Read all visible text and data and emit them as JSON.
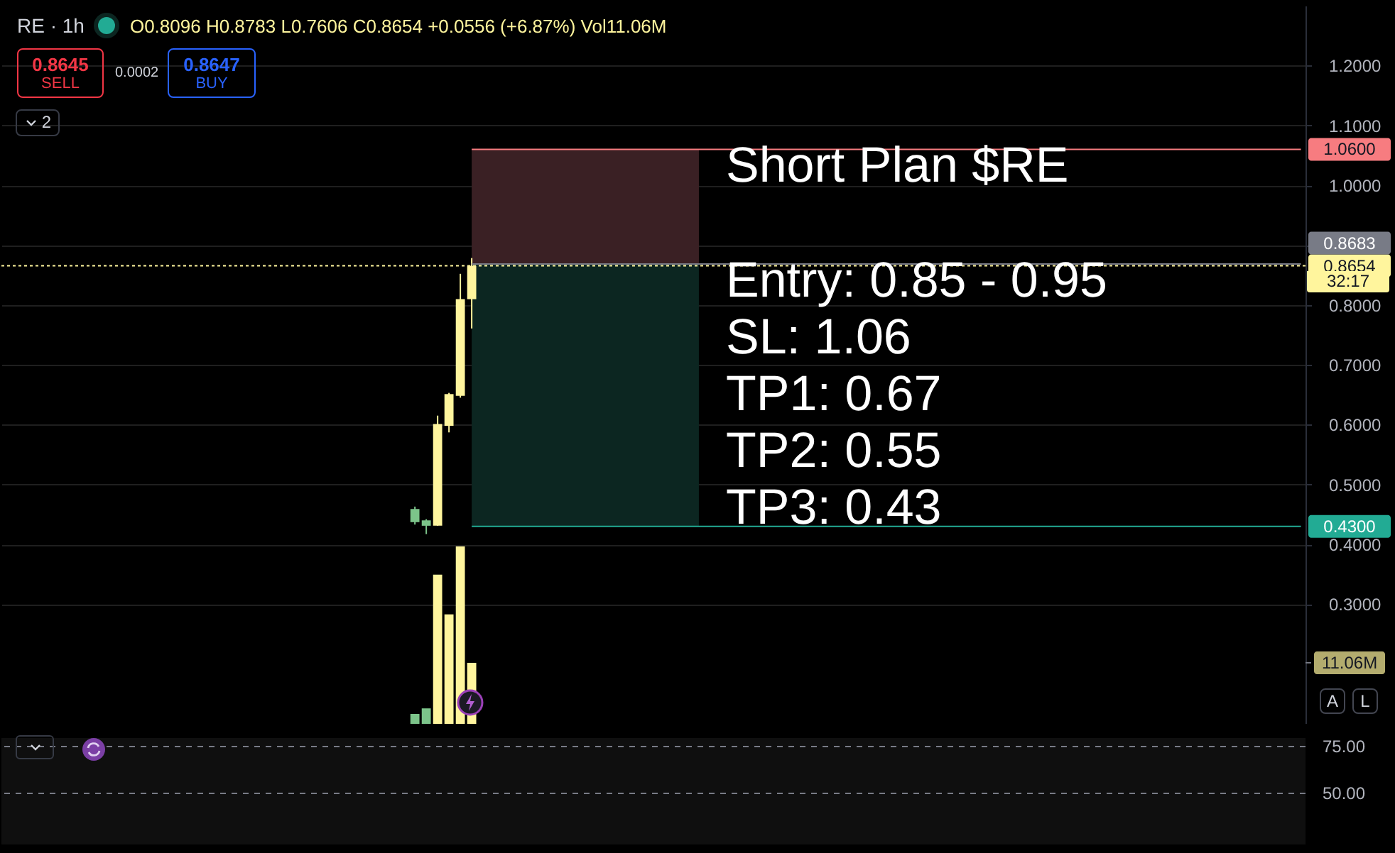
{
  "chart_data": [
    {
      "type": "candlestick",
      "title": "RE · 1h",
      "subtitle": "O0.8096 H0.8783 L0.7606 C0.8654 +0.0556 (+6.87%) Vol11.06M",
      "categories": [
        null,
        null,
        null,
        null,
        null,
        null,
        null,
        null,
        null,
        null,
        null,
        null,
        null,
        null,
        null,
        null,
        null,
        null,
        null,
        null,
        null,
        null,
        null,
        null,
        null,
        null,
        null,
        null,
        null,
        null,
        null,
        null,
        null,
        null,
        null,
        null,
        null,
        null,
        null,
        null,
        null,
        null,
        null,
        null,
        null,
        null,
        null,
        null,
        null,
        null,
        null,
        null,
        null,
        null,
        null,
        null,
        null,
        null,
        null,
        null,
        null,
        null,
        null,
        null,
        null,
        null,
        null,
        null,
        null,
        null,
        null,
        null,
        null,
        null,
        null,
        null,
        null,
        null,
        null,
        null,
        null,
        null,
        null,
        null,
        null,
        null,
        null,
        null,
        null,
        null,
        null,
        null,
        null,
        null,
        null,
        null,
        null,
        null,
        null,
        null,
        null,
        null,
        null,
        null,
        null,
        null,
        null,
        null,
        null,
        null,
        null,
        null,
        null,
        null,
        null
      ],
      "series": [
        {
          "type": "candlestick",
          "ohlc": [
            null,
            null,
            null,
            null,
            null,
            null,
            null,
            null,
            null,
            null,
            null,
            null,
            null,
            null,
            null,
            null,
            null,
            null,
            null,
            null,
            null,
            null,
            null,
            null,
            null,
            null,
            null,
            null,
            null,
            null,
            null,
            null,
            null,
            null,
            null,
            null,
            [
              0.437,
              0.463,
              0.433,
              0.459
            ],
            [
              0.431,
              0.442,
              0.417,
              0.44
            ],
            [
              0.431,
              0.615,
              0.431,
              0.601
            ],
            [
              0.598,
              0.653,
              0.587,
              0.651
            ],
            [
              0.648,
              0.852,
              0.645,
              0.8096
            ],
            [
              0.8096,
              0.8783,
              0.7606,
              0.8654
            ],
            null,
            null,
            null,
            null,
            null,
            null,
            null,
            null,
            null,
            null,
            null,
            null,
            null,
            null,
            null,
            null,
            null,
            null,
            null,
            null,
            null,
            null,
            null,
            null,
            null,
            null,
            null,
            null,
            null,
            null,
            null,
            null,
            null,
            null,
            null,
            null,
            null,
            null,
            null,
            null,
            null,
            null,
            null,
            null,
            null,
            null,
            null,
            null,
            null,
            null,
            null,
            null,
            null,
            null,
            null,
            null,
            null,
            null,
            null,
            null,
            null,
            null,
            null,
            null,
            null,
            null,
            null,
            null,
            null,
            null,
            null,
            null,
            null
          ],
          "colors": [
            null,
            null,
            null,
            null,
            null,
            null,
            null,
            null,
            null,
            null,
            null,
            null,
            null,
            null,
            null,
            null,
            null,
            null,
            null,
            null,
            null,
            null,
            null,
            null,
            null,
            null,
            null,
            null,
            null,
            null,
            null,
            null,
            null,
            null,
            null,
            null,
            "#7cc48a",
            "#7cc48a",
            "#fff59d",
            "#fff59d",
            "#fff59d",
            "#fff59d",
            null,
            null,
            null,
            null,
            null,
            null,
            null,
            null,
            null,
            null,
            null,
            null,
            null,
            null,
            null,
            null,
            null,
            null,
            null,
            null,
            null,
            null,
            null,
            null,
            null,
            null,
            null,
            null,
            null,
            null,
            null,
            null,
            null,
            null,
            null,
            null,
            null,
            null,
            null,
            null,
            null,
            null,
            null,
            null,
            null,
            null,
            null,
            null,
            null,
            null,
            null,
            null,
            null,
            null,
            null,
            null,
            null,
            null,
            null,
            null,
            null,
            null,
            null,
            null,
            null,
            null,
            null,
            null,
            null,
            null,
            null,
            null,
            null
          ]
        },
        {
          "type": "bar",
          "axis": "y2",
          "values": [
            null,
            null,
            null,
            null,
            null,
            null,
            null,
            null,
            null,
            null,
            null,
            null,
            null,
            null,
            null,
            null,
            null,
            null,
            null,
            null,
            null,
            null,
            null,
            null,
            null,
            null,
            null,
            null,
            null,
            null,
            null,
            null,
            null,
            null,
            null,
            null,
            1.8,
            2.8,
            27.0,
            19.8,
            32.1,
            11.06,
            null,
            null,
            null,
            null,
            null,
            null,
            null,
            null,
            null,
            null,
            null,
            null,
            null,
            null,
            null,
            null,
            null,
            null,
            null,
            null,
            null,
            null,
            null,
            null,
            null,
            null,
            null,
            null,
            null,
            null,
            null,
            null,
            null,
            null,
            null,
            null,
            null,
            null,
            null,
            null,
            null,
            null,
            null,
            null,
            null,
            null,
            null,
            null,
            null,
            null,
            null,
            null,
            null,
            null,
            null,
            null,
            null,
            null,
            null,
            null,
            null,
            null,
            null,
            null,
            null,
            null,
            null,
            null,
            null,
            null,
            null,
            null,
            null
          ],
          "colors": [
            null,
            null,
            null,
            null,
            null,
            null,
            null,
            null,
            null,
            null,
            null,
            null,
            null,
            null,
            null,
            null,
            null,
            null,
            null,
            null,
            null,
            null,
            null,
            null,
            null,
            null,
            null,
            null,
            null,
            null,
            null,
            null,
            null,
            null,
            null,
            null,
            "#7cc48a",
            "#7cc48a",
            "#fff59d",
            "#fff59d",
            "#fff59d",
            "#fff59d",
            null,
            null,
            null,
            null,
            null,
            null,
            null,
            null,
            null,
            null,
            null,
            null,
            null,
            null,
            null,
            null,
            null,
            null,
            null,
            null,
            null,
            null,
            null,
            null,
            null,
            null,
            null,
            null,
            null,
            null,
            null,
            null,
            null,
            null,
            null,
            null,
            null,
            null,
            null,
            null,
            null,
            null,
            null,
            null,
            null,
            null,
            null,
            null,
            null,
            null,
            null,
            null,
            null,
            null,
            null,
            null,
            null,
            null,
            null,
            null,
            null,
            null,
            null,
            null,
            null,
            null,
            null,
            null,
            null,
            null,
            null,
            null,
            null
          ]
        }
      ],
      "ylim": [
        0.1,
        1.3
      ],
      "yticks": [
        {
          "value": 0.3,
          "label": "0.3000"
        },
        {
          "value": 0.4,
          "label": "0.4000"
        },
        {
          "value": 0.5,
          "label": "0.5000"
        },
        {
          "value": 0.6,
          "label": "0.6000"
        },
        {
          "value": 0.7,
          "label": "0.7000"
        },
        {
          "value": 0.8,
          "label": "0.8000"
        },
        {
          "value": 0.9,
          "label": null
        },
        {
          "value": 1.0,
          "label": "1.0000"
        },
        {
          "value": 1.1,
          "label": "1.1000"
        },
        {
          "value": 1.2,
          "label": "1.2000"
        }
      ],
      "y2lim": [
        0,
        130
      ],
      "y2ticks": [
        {
          "value": 11.06,
          "label": "11.06M"
        }
      ],
      "bands": [
        {
          "axis": "y",
          "from": 0.8683,
          "to": 1.06,
          "color": "#3a2024"
        },
        {
          "axis": "y",
          "from": 0.43,
          "to": 0.8683,
          "color": "#0c2621"
        }
      ],
      "ref_lines": [
        {
          "axis": "y",
          "value": 1.06,
          "label": "1.0600",
          "color": "#f77c80"
        },
        {
          "axis": "y",
          "value": 0.8683,
          "label": "0.8683",
          "color": "#787b86"
        },
        {
          "axis": "y",
          "value": 0.8654,
          "label": "0.8654",
          "color": "#fff59d",
          "line_style": "dotted"
        },
        {
          "axis": "y",
          "value": 0.43,
          "label": "0.4300",
          "color": "#22ab94"
        }
      ],
      "annotations": [
        "Short Plan $RE",
        "Entry: 0.85 - 0.95",
        "SL: 1.06",
        "TP1: 0.67",
        "TP2: 0.55",
        "TP3: 0.43",
        "0.8645",
        "SELL",
        "0.0002",
        "0.8647",
        "BUY",
        "2",
        "32:17",
        "A",
        "L"
      ],
      "grid": "y",
      "tick_labels": "y"
    },
    {
      "type": "other",
      "annotations": [
        "75.00",
        "50.00"
      ]
    }
  ]
}
